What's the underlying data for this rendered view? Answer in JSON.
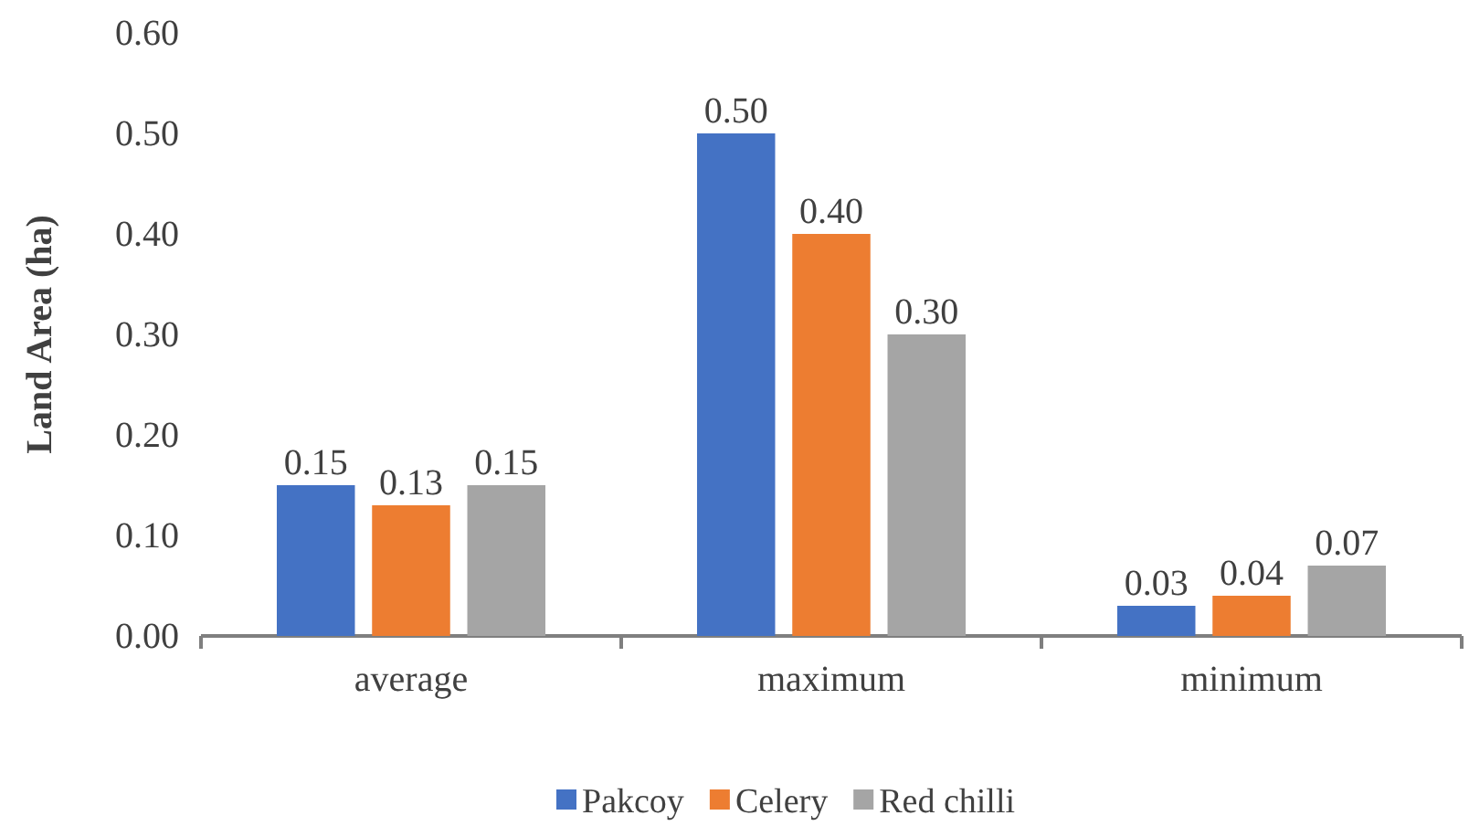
{
  "chart_data": {
    "type": "bar",
    "ylabel": "Land Area (ha)",
    "categories": [
      "average",
      "maximum",
      "minimum"
    ],
    "series": [
      {
        "name": "Pakcoy",
        "color": "#4472c4",
        "values": [
          0.15,
          0.5,
          0.03
        ],
        "value_labels": [
          "0.15",
          "0.50",
          "0.03"
        ]
      },
      {
        "name": "Celery",
        "color": "#ed7d31",
        "values": [
          0.13,
          0.4,
          0.04
        ],
        "value_labels": [
          "0.13",
          "0.40",
          "0.04"
        ]
      },
      {
        "name": "Red chilli",
        "color": "#a5a5a5",
        "values": [
          0.15,
          0.3,
          0.07
        ],
        "value_labels": [
          "0.15",
          "0.30",
          "0.07"
        ]
      }
    ],
    "ylim": [
      0,
      0.6
    ],
    "yticks": [
      {
        "value": 0,
        "label": "0.00"
      },
      {
        "value": 0.1,
        "label": "0.10"
      },
      {
        "value": 0.2,
        "label": "0.20"
      },
      {
        "value": 0.3,
        "label": "0.30"
      },
      {
        "value": 0.4,
        "label": "0.40"
      },
      {
        "value": 0.5,
        "label": "0.50"
      },
      {
        "value": 0.6,
        "label": "0.60"
      }
    ],
    "legend": "bottom"
  }
}
